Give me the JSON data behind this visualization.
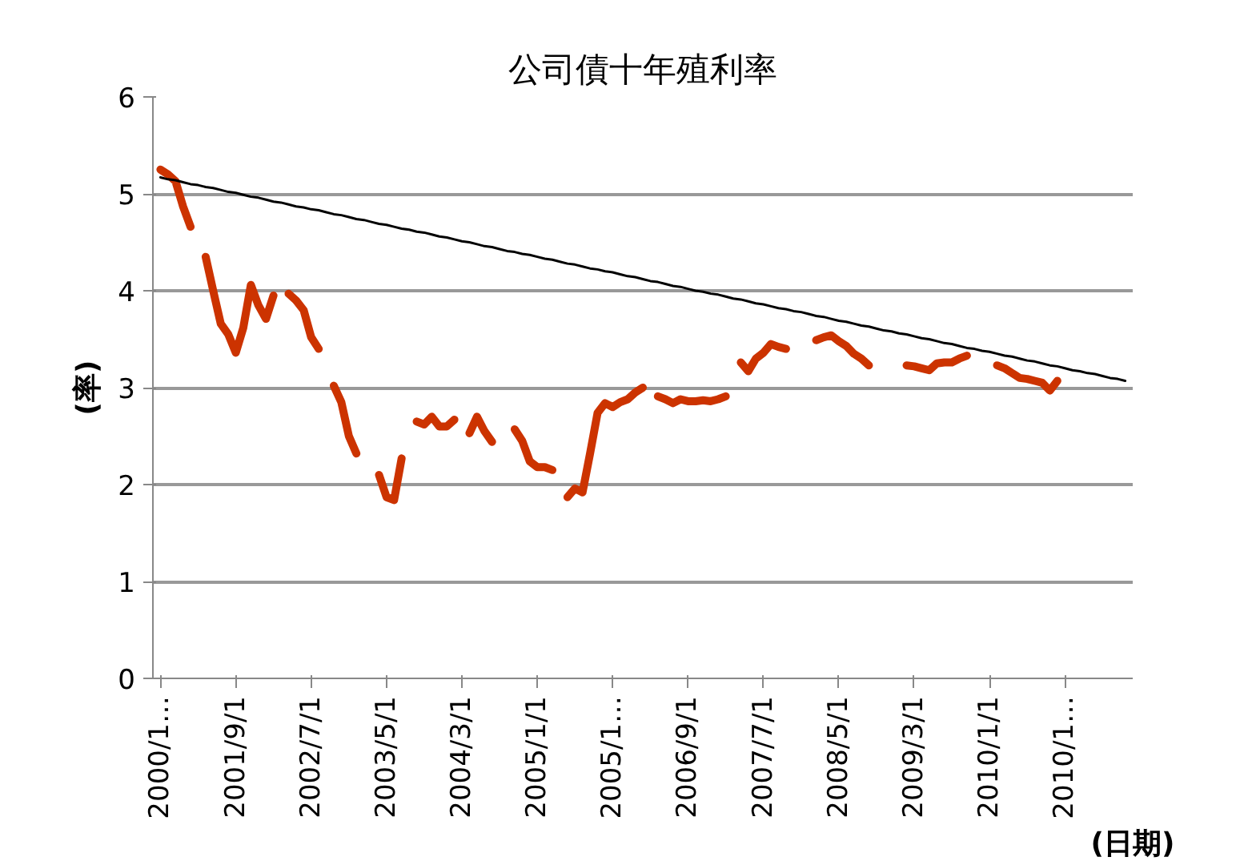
{
  "chart_data": {
    "type": "line",
    "title": "公司債十年殖利率",
    "ylabel": "(率)",
    "xlabel": "(日期)",
    "categories": [
      "2000/1…",
      null,
      null,
      null,
      null,
      null,
      null,
      null,
      null,
      null,
      "2001/9/1",
      null,
      null,
      null,
      null,
      null,
      null,
      null,
      null,
      null,
      "2002/7/1",
      null,
      null,
      null,
      null,
      null,
      null,
      null,
      null,
      null,
      "2003/5/1",
      null,
      null,
      null,
      null,
      null,
      null,
      null,
      null,
      null,
      "2004/3/1",
      null,
      null,
      null,
      null,
      null,
      null,
      null,
      null,
      null,
      "2005/1/1",
      null,
      null,
      null,
      null,
      null,
      null,
      null,
      null,
      null,
      "2005/1…",
      null,
      null,
      null,
      null,
      null,
      null,
      null,
      null,
      null,
      "2006/9/1",
      null,
      null,
      null,
      null,
      null,
      null,
      null,
      null,
      null,
      "2007/7/1",
      null,
      null,
      null,
      null,
      null,
      null,
      null,
      null,
      null,
      "2008/5/1",
      null,
      null,
      null,
      null,
      null,
      null,
      null,
      null,
      null,
      "2009/3/1",
      null,
      null,
      null,
      null,
      null,
      null,
      null,
      null,
      null,
      "2010/1/1",
      null,
      null,
      null,
      null,
      null,
      null,
      null,
      null,
      null,
      "2010/1…",
      null,
      null,
      null,
      null,
      null,
      null,
      null,
      null
    ],
    "series": [
      {
        "color": "#cc3300",
        "values": [
          5.25,
          5.2,
          5.13,
          4.87,
          4.66,
          null,
          4.35,
          4.0,
          3.66,
          3.55,
          3.36,
          3.62,
          4.06,
          3.85,
          3.71,
          3.95,
          null,
          3.97,
          3.9,
          3.8,
          3.52,
          3.4,
          null,
          3.02,
          2.85,
          2.5,
          2.32,
          null,
          null,
          2.1,
          1.87,
          1.84,
          2.27,
          null,
          2.65,
          2.62,
          2.7,
          2.6,
          2.6,
          2.67,
          null,
          2.53,
          2.7,
          2.55,
          2.44,
          null,
          null,
          2.57,
          2.45,
          2.24,
          2.18,
          2.18,
          2.15,
          null,
          1.87,
          1.96,
          1.92,
          2.32,
          2.74,
          2.84,
          2.8,
          2.85,
          2.88,
          2.95,
          3.0,
          null,
          2.91,
          2.88,
          2.84,
          2.88,
          2.86,
          2.86,
          2.87,
          2.86,
          2.88,
          2.91,
          null,
          3.26,
          3.17,
          3.3,
          3.36,
          3.45,
          3.42,
          3.4,
          null,
          null,
          null,
          3.49,
          3.52,
          3.54,
          3.48,
          3.43,
          3.35,
          3.3,
          3.23,
          null,
          null,
          null,
          null,
          3.23,
          3.22,
          3.2,
          3.18,
          3.25,
          3.26,
          3.26,
          3.3,
          3.33,
          null,
          null,
          null,
          3.23,
          3.2,
          3.15,
          3.1,
          3.09,
          3.07,
          3.05,
          2.97,
          3.07,
          null,
          null,
          null,
          null,
          null,
          null,
          null,
          null,
          null
        ]
      },
      {
        "type": "line",
        "color": "#000000",
        "values": [
          5.17,
          5.15,
          5.14,
          5.12,
          5.1,
          5.09,
          5.07,
          5.06,
          5.04,
          5.02,
          5.01,
          4.99,
          4.97,
          4.96,
          4.94,
          4.92,
          4.91,
          4.89,
          4.87,
          4.86,
          4.84,
          4.83,
          4.81,
          4.79,
          4.78,
          4.76,
          4.74,
          4.73,
          4.71,
          4.69,
          4.68,
          4.66,
          4.64,
          4.63,
          4.61,
          4.6,
          4.58,
          4.56,
          4.55,
          4.53,
          4.51,
          4.5,
          4.48,
          4.46,
          4.45,
          4.43,
          4.41,
          4.4,
          4.38,
          4.37,
          4.35,
          4.33,
          4.32,
          4.3,
          4.28,
          4.27,
          4.25,
          4.23,
          4.22,
          4.2,
          4.19,
          4.17,
          4.15,
          4.14,
          4.12,
          4.1,
          4.09,
          4.07,
          4.05,
          4.04,
          4.02,
          4.0,
          3.99,
          3.97,
          3.96,
          3.94,
          3.92,
          3.91,
          3.89,
          3.87,
          3.86,
          3.84,
          3.82,
          3.81,
          3.79,
          3.78,
          3.76,
          3.74,
          3.73,
          3.71,
          3.69,
          3.68,
          3.66,
          3.64,
          3.63,
          3.61,
          3.59,
          3.58,
          3.56,
          3.55,
          3.53,
          3.51,
          3.5,
          3.48,
          3.46,
          3.45,
          3.43,
          3.41,
          3.4,
          3.38,
          3.37,
          3.35,
          3.33,
          3.32,
          3.3,
          3.28,
          3.27,
          3.25,
          3.23,
          3.22,
          3.2,
          3.18,
          3.17,
          3.15,
          3.14,
          3.12,
          3.1,
          3.09,
          3.07
        ]
      }
    ],
    "ylim": [
      0,
      6
    ],
    "yticks": [
      0,
      1,
      2,
      3,
      4,
      5,
      6
    ],
    "grid": "y"
  }
}
